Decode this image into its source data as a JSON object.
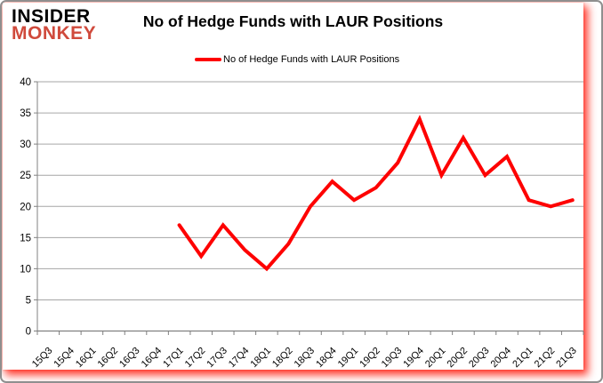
{
  "header": {
    "logo_line1": "INSIDER",
    "logo_line2": "MONKEY",
    "logo_color2": "#d04a3c",
    "title": "No of Hedge Funds with LAUR Positions"
  },
  "legend": {
    "label": "No of Hedge Funds with LAUR Positions",
    "marker_color": "#fe0000"
  },
  "chart_data": {
    "type": "line",
    "title": "No of Hedge Funds with LAUR Positions",
    "categories": [
      "15Q3",
      "15Q4",
      "16Q1",
      "16Q2",
      "16Q3",
      "16Q4",
      "17Q1",
      "17Q2",
      "17Q3",
      "17Q4",
      "18Q1",
      "18Q2",
      "18Q3",
      "18Q4",
      "19Q1",
      "19Q2",
      "19Q3",
      "19Q4",
      "20Q1",
      "20Q2",
      "20Q3",
      "20Q4",
      "21Q1",
      "21Q2",
      "21Q3"
    ],
    "series": [
      {
        "name": "No of Hedge Funds with LAUR Positions",
        "color": "#fe0000",
        "values": [
          null,
          null,
          null,
          null,
          null,
          null,
          17,
          12,
          17,
          13,
          10,
          14,
          20,
          24,
          21,
          23,
          27,
          34,
          25,
          31,
          25,
          28,
          21,
          20,
          21
        ]
      }
    ],
    "ylim": [
      0,
      40
    ],
    "ytick_interval": 5,
    "ytick_labels": [
      "0",
      "5",
      "10",
      "15",
      "20",
      "25",
      "30",
      "35",
      "40"
    ],
    "xlabel": "",
    "ylabel": "",
    "grid": true,
    "legend_position": "top-center",
    "gridline_color": "#a6a6a6",
    "axis_color": "#808080",
    "label_color": "#000000"
  }
}
